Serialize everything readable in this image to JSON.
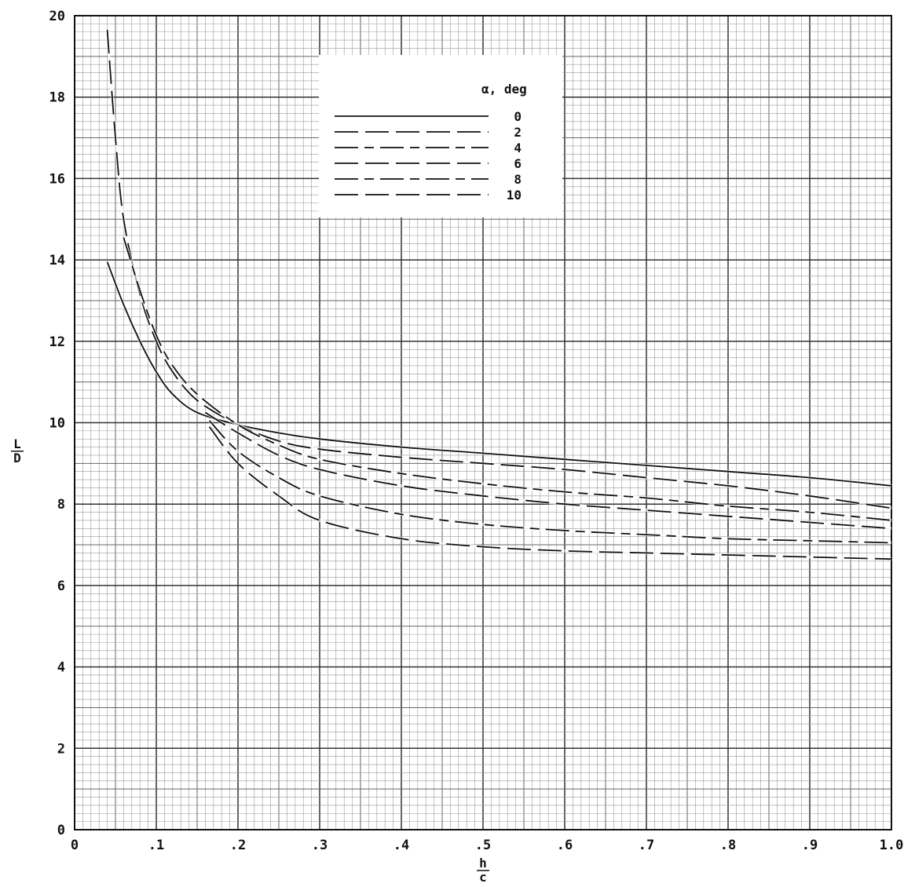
{
  "chart_data": {
    "type": "line",
    "x_label_num": "h",
    "x_label_den": "c",
    "y_label_num": "L",
    "y_label_den": "D",
    "xlim": [
      0,
      1.0
    ],
    "ylim": [
      0,
      20
    ],
    "x_ticks": [
      0,
      0.1,
      0.2,
      0.3,
      0.4,
      0.5,
      0.6,
      0.7,
      0.8,
      0.9,
      1.0
    ],
    "x_tick_labels": [
      "0",
      ".1",
      ".2",
      ".3",
      ".4",
      ".5",
      ".6",
      ".7",
      ".8",
      ".9",
      "1.0"
    ],
    "y_ticks": [
      0,
      2,
      4,
      6,
      8,
      10,
      12,
      14,
      16,
      18,
      20
    ],
    "y_tick_labels": [
      "0",
      "2",
      "4",
      "6",
      "8",
      "10",
      "12",
      "14",
      "16",
      "18",
      "20"
    ],
    "grid": true,
    "legend_title": "α, deg",
    "legend_position": "top-center",
    "series": [
      {
        "name": "0",
        "dash": "solid",
        "x": [
          0.04,
          0.06,
          0.08,
          0.1,
          0.12,
          0.15,
          0.2,
          0.25,
          0.3,
          0.4,
          0.5,
          0.6,
          0.7,
          0.8,
          0.9,
          1.0
        ],
        "y": [
          13.95,
          12.9,
          12.0,
          11.25,
          10.7,
          10.25,
          9.95,
          9.75,
          9.6,
          9.4,
          9.25,
          9.1,
          8.95,
          8.8,
          8.65,
          8.45
        ]
      },
      {
        "name": "2",
        "dash": "long-dash",
        "x": [
          0.04,
          0.05,
          0.06,
          0.08,
          0.1,
          0.12,
          0.15,
          0.2,
          0.25,
          0.3,
          0.4,
          0.5,
          0.6,
          0.7,
          0.8,
          0.9,
          1.0
        ],
        "y": [
          19.65,
          17.0,
          15.0,
          13.15,
          12.0,
          11.25,
          10.55,
          9.95,
          9.55,
          9.35,
          9.15,
          9.0,
          8.85,
          8.65,
          8.45,
          8.2,
          7.9
        ]
      },
      {
        "name": "4",
        "dash": "long-short",
        "x": [
          0.06,
          0.08,
          0.1,
          0.12,
          0.15,
          0.2,
          0.25,
          0.3,
          0.4,
          0.5,
          0.6,
          0.7,
          0.8,
          0.9,
          1.0
        ],
        "y": [
          14.55,
          13.25,
          12.15,
          11.4,
          10.7,
          9.95,
          9.45,
          9.1,
          8.75,
          8.5,
          8.3,
          8.15,
          7.95,
          7.8,
          7.6
        ]
      },
      {
        "name": "6",
        "dash": "long-dash",
        "x": [
          0.16,
          0.2,
          0.25,
          0.3,
          0.4,
          0.5,
          0.6,
          0.7,
          0.8,
          0.9,
          1.0
        ],
        "y": [
          10.25,
          9.75,
          9.2,
          8.85,
          8.45,
          8.2,
          8.0,
          7.85,
          7.7,
          7.55,
          7.4
        ]
      },
      {
        "name": "8",
        "dash": "long-short",
        "x": [
          0.165,
          0.2,
          0.25,
          0.3,
          0.4,
          0.5,
          0.6,
          0.7,
          0.8,
          0.9,
          1.0
        ],
        "y": [
          10.05,
          9.3,
          8.65,
          8.2,
          7.75,
          7.5,
          7.35,
          7.25,
          7.15,
          7.1,
          7.05
        ]
      },
      {
        "name": "10",
        "dash": "long-dash",
        "x": [
          0.165,
          0.2,
          0.25,
          0.3,
          0.4,
          0.5,
          0.6,
          0.7,
          0.8,
          0.9,
          1.0
        ],
        "y": [
          9.9,
          9.0,
          8.2,
          7.6,
          7.15,
          6.95,
          6.85,
          6.8,
          6.75,
          6.7,
          6.65
        ]
      }
    ]
  }
}
